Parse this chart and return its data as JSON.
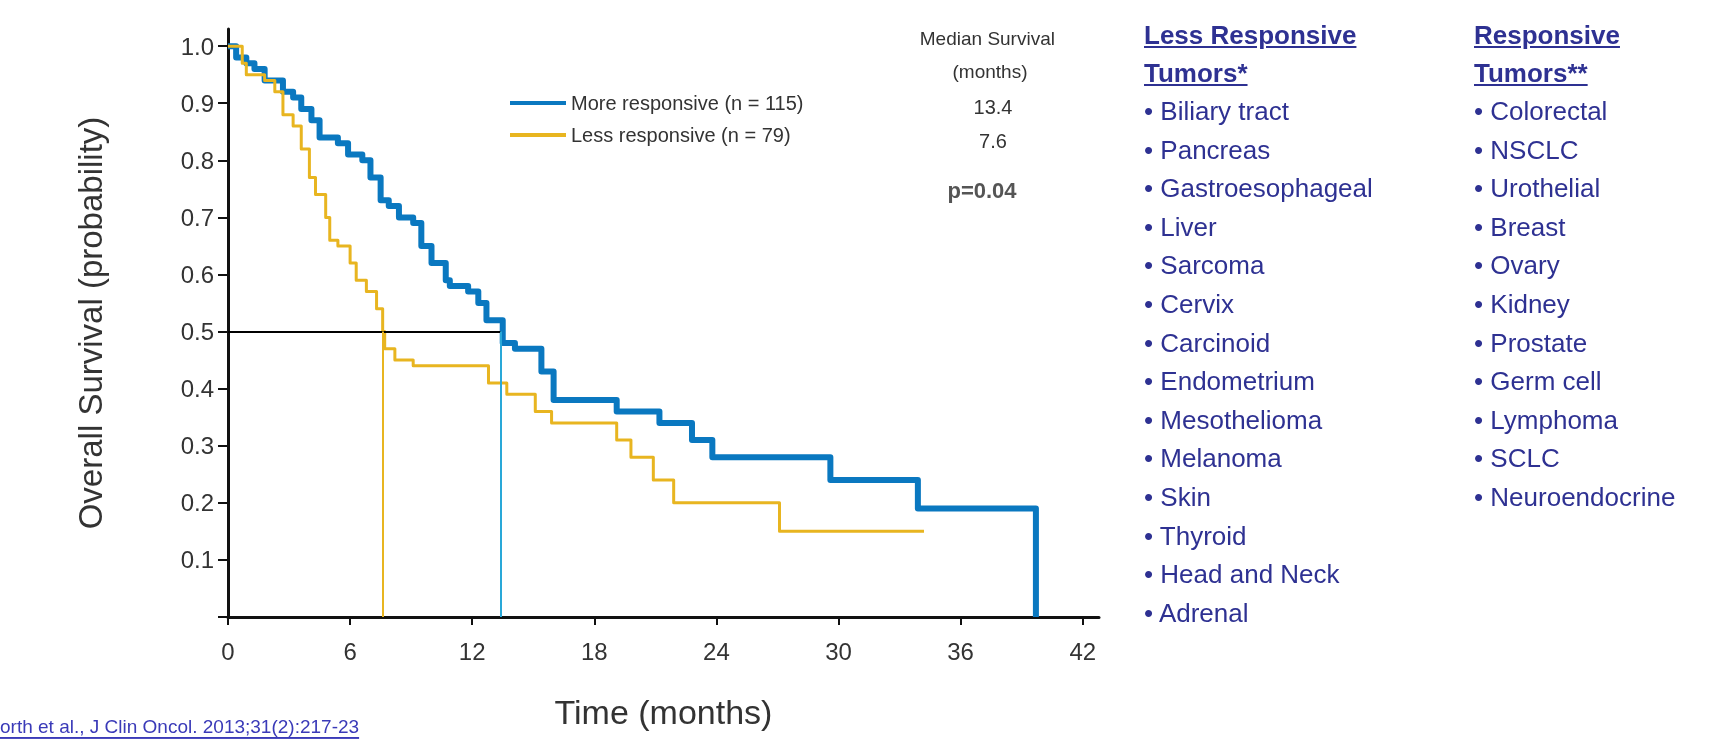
{
  "chart_data": [
    {
      "type": "step",
      "xlabel": "Time (months)",
      "ylabel": "Overall Survival (probability)",
      "series": [
        {
          "name": "More responsive (n = 115)",
          "color": "#0a78c0",
          "x": [
            0,
            0.4,
            0.9,
            1.3,
            1.8,
            2.7,
            3.2,
            3.6,
            4.1,
            4.5,
            5.4,
            5.9,
            6.6,
            7.0,
            7.5,
            7.9,
            8.4,
            9.1,
            9.5,
            10.0,
            10.7,
            10.9,
            11.8,
            12.3,
            12.7,
            13.5,
            14.1,
            15.4,
            16.0,
            19.1,
            21.2,
            22.8,
            23.8,
            29.6,
            33.9,
            39.7
          ],
          "values": [
            1.0,
            0.98,
            0.97,
            0.96,
            0.94,
            0.92,
            0.91,
            0.89,
            0.87,
            0.84,
            0.83,
            0.81,
            0.8,
            0.77,
            0.73,
            0.72,
            0.7,
            0.69,
            0.65,
            0.62,
            0.59,
            0.58,
            0.57,
            0.55,
            0.52,
            0.48,
            0.47,
            0.43,
            0.38,
            0.36,
            0.34,
            0.31,
            0.28,
            0.24,
            0.19,
            0
          ]
        },
        {
          "name": "Less responsive (n = 79)",
          "color": "#e8b520",
          "x": [
            0,
            0.7,
            0.9,
            1.8,
            2.3,
            2.7,
            3.2,
            3.6,
            4.0,
            4.3,
            4.8,
            5.0,
            5.4,
            6.0,
            6.3,
            6.8,
            7.3,
            7.6,
            7.7,
            8.2,
            9.1,
            12.8,
            13.7,
            15.1,
            15.9,
            19.1,
            19.8,
            20.9,
            21.9,
            27.1,
            34.2
          ],
          "values": [
            1.0,
            0.97,
            0.95,
            0.94,
            0.92,
            0.88,
            0.86,
            0.82,
            0.77,
            0.74,
            0.7,
            0.66,
            0.65,
            0.62,
            0.59,
            0.57,
            0.54,
            0.5,
            0.47,
            0.45,
            0.44,
            0.41,
            0.39,
            0.36,
            0.34,
            0.31,
            0.28,
            0.24,
            0.2,
            0.15,
            0.15
          ]
        }
      ],
      "xlim": [
        0,
        42.8
      ],
      "xticks": [
        0,
        6,
        12,
        18,
        24,
        30,
        36,
        42
      ],
      "ylim": [
        0,
        1.03
      ],
      "yticks": [
        {
          "value": 0,
          "label": null
        },
        0.1,
        0.2,
        0.3,
        0.4,
        0.5,
        0.6,
        0.7,
        0.8,
        0.9,
        {
          "value": 1,
          "label": "1.0"
        }
      ],
      "ref_lines": [
        {
          "axis": "y",
          "value": 0.5,
          "color": "#000000"
        },
        {
          "axis": "x",
          "value": 7.6,
          "color": "#e8b520"
        },
        {
          "axis": "x",
          "value": 13.4,
          "color": "#29a8d8"
        }
      ],
      "legend": "top right",
      "grid": false,
      "marker": "none",
      "line_style": "solid",
      "annotations": [
        "Median Survival (months)",
        "13.4",
        "7.6",
        "p=0.04",
        "orth et al., J Clin Oncol. 2013;31(2):217-23"
      ]
    },
    {
      "type": "other",
      "title": "Less Responsive Tumors*",
      "annotations": [
        "• Biliary tract",
        "• Pancreas",
        "• Gastroesophageal",
        "• Liver",
        "• Sarcoma",
        "• Cervix",
        "• Carcinoid",
        "• Endometrium",
        "• Mesothelioma",
        "• Melanoma",
        "• Skin",
        "• Thyroid",
        "• Head and Neck",
        "• Adrenal"
      ]
    },
    {
      "type": "other",
      "title": "Responsive Tumors**",
      "annotations": [
        "• Colorectal",
        "• NSCLC",
        "• Urothelial",
        "• Breast",
        "• Ovary",
        "• Kidney",
        "• Prostate",
        "• Germ cell",
        "• Lymphoma",
        "• SCLC",
        "• Neuroendocrine"
      ]
    }
  ]
}
